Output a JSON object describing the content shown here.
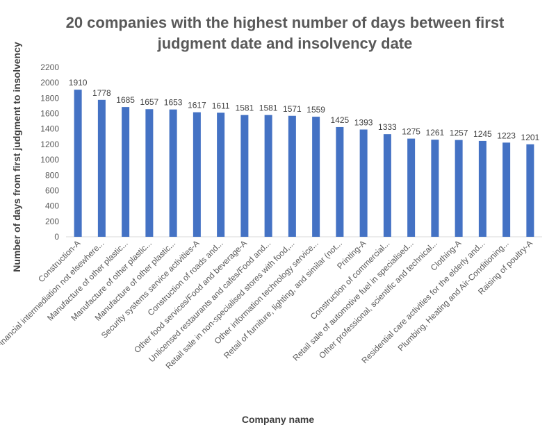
{
  "chart_data": {
    "type": "bar",
    "title": "20 companies with the highest number of days between first judgment date and insolvency date",
    "title_lines": [
      "20 companies with the highest number of days between first",
      "judgment date and insolvency date"
    ],
    "xlabel": "Company name",
    "ylabel": "Number of days from  first judgment to insolvency",
    "ylim": [
      0,
      2200
    ],
    "yticks": [
      0,
      200,
      400,
      600,
      800,
      1000,
      1200,
      1400,
      1600,
      1800,
      2000,
      2200
    ],
    "grid": false,
    "legend": "none",
    "bar_color": "#4472C4",
    "categories": [
      "Construction-A",
      "Financial intermediation not elsewhere...",
      "Manufacture of other plastic...",
      "Manufacture of other plastic...",
      "Manufacture of other plastic...",
      "Security systems service activities-A",
      "Construction of roads and...",
      "Other food services/Food and beverage-A",
      "Unlicensed restaurants and cafes/Food and...",
      "Retail sale in non-specialised stores with food,...",
      "Other information technology service...",
      "Retail of furniture, lighting, and similar (not...",
      "Printing-A",
      "Construction of commercial...",
      "Retail sale of automotive fuel in specialised...",
      "Other professional, scientific and technical...",
      "Clothing-A",
      "Residential care activities for the elderly and...",
      "Plumbing, Heating and Air-Conditioning...",
      "Raising of poultry-A"
    ],
    "values": [
      1910,
      1778,
      1685,
      1657,
      1653,
      1617,
      1611,
      1581,
      1581,
      1571,
      1559,
      1425,
      1393,
      1333,
      1275,
      1261,
      1257,
      1245,
      1223,
      1201
    ]
  }
}
